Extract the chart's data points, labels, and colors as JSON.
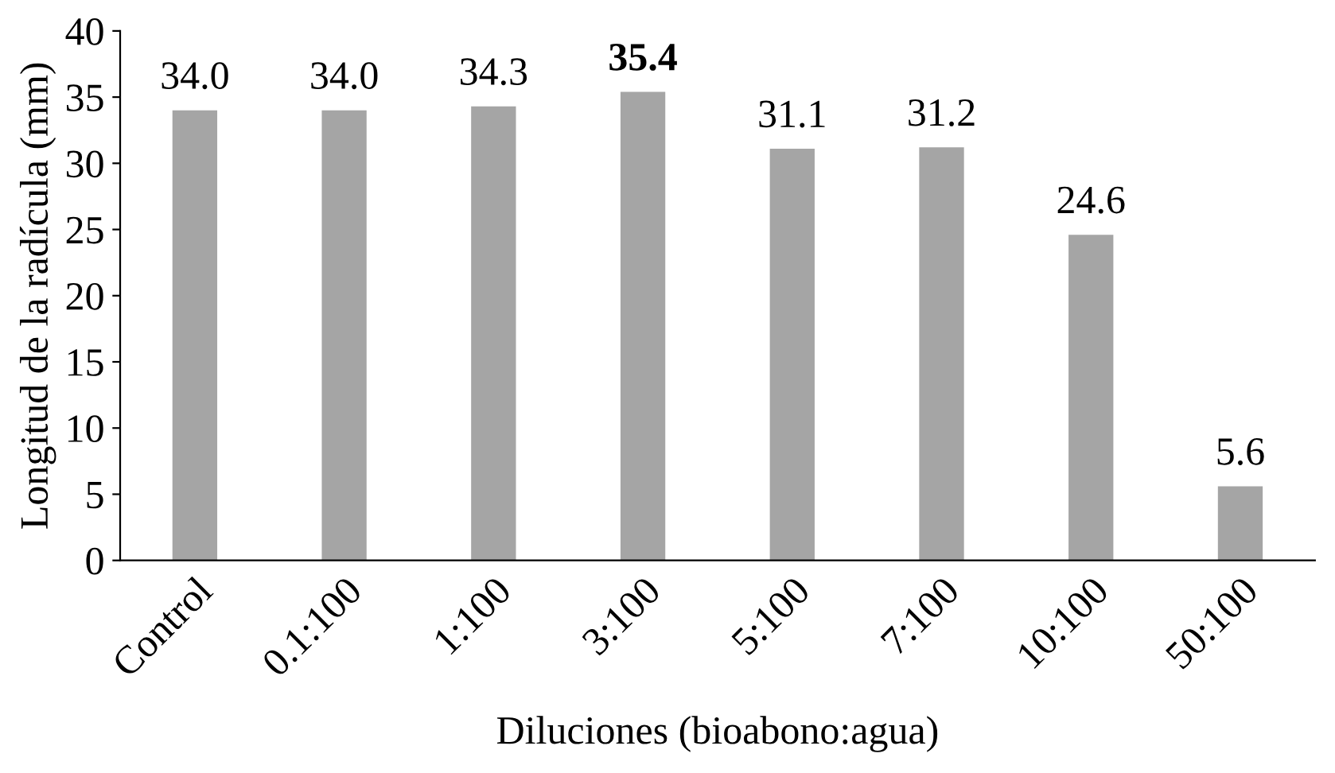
{
  "chart_data": {
    "type": "bar",
    "xlabel": "Diluciones (bioabono:agua)",
    "ylabel": "Longitud de la radícula (mm)",
    "categories": [
      "Control",
      "0.1:100",
      "1:100",
      "3:100",
      "5:100",
      "7:100",
      "10:100",
      "50:100"
    ],
    "values": [
      34.0,
      34.0,
      34.3,
      35.4,
      31.1,
      31.2,
      24.6,
      5.6
    ],
    "value_labels": [
      "34.0",
      "34.0",
      "34.3",
      "35.4",
      "31.1",
      "31.2",
      "24.6",
      "5.6"
    ],
    "color": "#a5a5a5",
    "ylim": [
      0,
      40
    ],
    "yticks": [
      0,
      5,
      10,
      15,
      20,
      25,
      30,
      35,
      40
    ],
    "grid": false,
    "legend": false
  }
}
